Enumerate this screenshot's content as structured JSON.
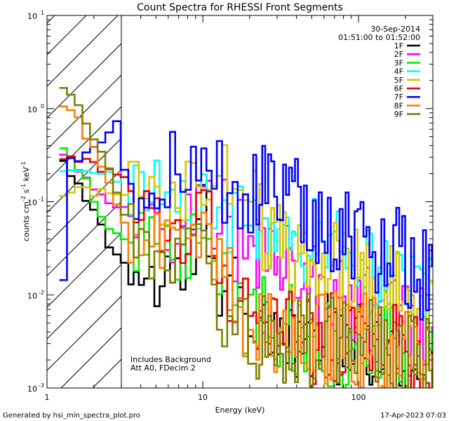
{
  "chart_data": {
    "type": "line",
    "title": "Count Spectra for RHESSI Front Segments",
    "xlabel": "Energy (keV)",
    "ylabel_parts": [
      "counts cm",
      "-2",
      " s",
      "-1",
      " keV",
      "-1"
    ],
    "xscale": "log",
    "yscale": "log",
    "xlim": [
      1,
      300
    ],
    "ylim": [
      0.001,
      10
    ],
    "x_ticks": [
      {
        "value": 1,
        "label": "1"
      },
      {
        "value": 10,
        "label": "10"
      },
      {
        "value": 100,
        "label": "100"
      }
    ],
    "y_ticks": [
      {
        "value": 0.001,
        "base": "10",
        "exp": "-3"
      },
      {
        "value": 0.01,
        "base": "10",
        "exp": "-2"
      },
      {
        "value": 0.1,
        "base": "10",
        "exp": "-1"
      },
      {
        "value": 1,
        "base": "10",
        "exp": "0"
      },
      {
        "value": 10,
        "base": "10",
        "exp": "1"
      }
    ],
    "date": "30-Sep-2014",
    "time_range": "01:51:00 to 01:52:00",
    "hatched_region_keV": [
      1,
      3
    ],
    "notes": [
      "Includes Background",
      "Att A0, FDecim 2"
    ],
    "legend_position": "top-right",
    "series": [
      {
        "name": "1F",
        "color": "#000000",
        "profile": [
          [
            1.2,
            0.25
          ],
          [
            1.35,
            0.2
          ],
          [
            1.6,
            0.12
          ],
          [
            2.0,
            0.065
          ],
          [
            2.5,
            0.03
          ],
          [
            3.0,
            0.022
          ],
          [
            5,
            0.012
          ],
          [
            8,
            0.016
          ],
          [
            10,
            0.09
          ],
          [
            12,
            0.02
          ],
          [
            20,
            0.0045
          ],
          [
            40,
            0.0035
          ],
          [
            80,
            0.003
          ],
          [
            150,
            0.0025
          ],
          [
            290,
            0.0018
          ]
        ]
      },
      {
        "name": "2F",
        "color": "#ff00ff",
        "profile": [
          [
            1.2,
            0.35
          ],
          [
            1.4,
            0.26
          ],
          [
            1.7,
            0.17
          ],
          [
            2.2,
            0.12
          ],
          [
            2.8,
            0.085
          ],
          [
            3.2,
            0.07
          ],
          [
            6,
            0.05
          ],
          [
            10,
            0.11
          ],
          [
            15,
            0.04
          ],
          [
            25,
            0.03
          ],
          [
            40,
            0.022
          ],
          [
            70,
            0.012
          ],
          [
            120,
            0.006
          ],
          [
            200,
            0.0045
          ],
          [
            290,
            0.004
          ]
        ]
      },
      {
        "name": "3F",
        "color": "#00ee00",
        "profile": [
          [
            1.2,
            0.38
          ],
          [
            1.4,
            0.3
          ],
          [
            1.7,
            0.16
          ],
          [
            2.2,
            0.06
          ],
          [
            2.8,
            0.045
          ],
          [
            3.2,
            0.04
          ],
          [
            6,
            0.022
          ],
          [
            10,
            0.04
          ],
          [
            15,
            0.006
          ],
          [
            30,
            0.0045
          ],
          [
            60,
            0.003
          ],
          [
            120,
            0.0025
          ],
          [
            290,
            0.002
          ]
        ]
      },
      {
        "name": "4F",
        "color": "#00ffff",
        "profile": [
          [
            1.2,
            0.2
          ],
          [
            1.4,
            0.2
          ],
          [
            1.7,
            0.2
          ],
          [
            2.2,
            0.2
          ],
          [
            2.8,
            0.18
          ],
          [
            3.2,
            0.17
          ],
          [
            6,
            0.13
          ],
          [
            10,
            0.12
          ],
          [
            15,
            0.08
          ],
          [
            30,
            0.055
          ],
          [
            60,
            0.035
          ],
          [
            120,
            0.018
          ],
          [
            200,
            0.012
          ],
          [
            290,
            0.01
          ]
        ]
      },
      {
        "name": "5F",
        "color": "#d4c800",
        "profile": [
          [
            1.2,
            0.13
          ],
          [
            1.5,
            0.13
          ],
          [
            2.0,
            0.13
          ],
          [
            2.6,
            0.125
          ],
          [
            3.2,
            0.12
          ],
          [
            6,
            0.11
          ],
          [
            9,
            0.14
          ],
          [
            12,
            0.16
          ],
          [
            18,
            0.17
          ],
          [
            25,
            0.04
          ],
          [
            40,
            0.02
          ],
          [
            70,
            0.02
          ],
          [
            110,
            0.014
          ],
          [
            200,
            0.01
          ],
          [
            290,
            0.008
          ]
        ]
      },
      {
        "name": "6F",
        "color": "#ee0000",
        "profile": [
          [
            1.2,
            0.3
          ],
          [
            1.4,
            0.27
          ],
          [
            1.8,
            0.25
          ],
          [
            2.3,
            0.2
          ],
          [
            3.0,
            0.18
          ],
          [
            3.3,
            0.12
          ],
          [
            5,
            0.05
          ],
          [
            8,
            0.05
          ],
          [
            10,
            0.12
          ],
          [
            13,
            0.012
          ],
          [
            20,
            0.005
          ],
          [
            40,
            0.004
          ],
          [
            80,
            0.003
          ],
          [
            150,
            0.0025
          ],
          [
            290,
            0.002
          ]
        ]
      },
      {
        "name": "7F",
        "color": "#0000ff",
        "profile": [
          [
            1.25,
            0.014
          ],
          [
            1.32,
            0.3
          ],
          [
            1.6,
            0.3
          ],
          [
            2.0,
            0.4
          ],
          [
            2.4,
            0.5
          ],
          [
            2.7,
            0.8
          ],
          [
            3.0,
            0.2
          ],
          [
            4.5,
            0.08
          ],
          [
            6,
            0.25
          ],
          [
            9,
            0.3
          ],
          [
            12,
            0.2
          ],
          [
            18,
            0.14
          ],
          [
            30,
            0.11
          ],
          [
            50,
            0.07
          ],
          [
            80,
            0.045
          ],
          [
            120,
            0.035
          ],
          [
            200,
            0.025
          ],
          [
            290,
            0.012
          ]
        ]
      },
      {
        "name": "8F",
        "color": "#ff7f00",
        "profile": [
          [
            1.2,
            0.95
          ],
          [
            1.45,
            0.8
          ],
          [
            1.8,
            0.45
          ],
          [
            2.3,
            0.2
          ],
          [
            2.8,
            0.08
          ],
          [
            3.3,
            0.05
          ],
          [
            6,
            0.03
          ],
          [
            9,
            0.03
          ],
          [
            10,
            0.1
          ],
          [
            12,
            0.02
          ],
          [
            20,
            0.005
          ],
          [
            40,
            0.004
          ],
          [
            80,
            0.0035
          ],
          [
            150,
            0.003
          ],
          [
            290,
            0.0025
          ]
        ]
      },
      {
        "name": "9F",
        "color": "#7f7f00",
        "profile": [
          [
            1.2,
            1.8
          ],
          [
            1.4,
            1.3
          ],
          [
            1.7,
            0.7
          ],
          [
            2.2,
            0.3
          ],
          [
            2.8,
            0.09
          ],
          [
            3.3,
            0.05
          ],
          [
            6,
            0.025
          ],
          [
            9,
            0.03
          ],
          [
            10,
            0.13
          ],
          [
            12,
            0.01
          ],
          [
            20,
            0.004
          ],
          [
            40,
            0.0035
          ],
          [
            80,
            0.003
          ],
          [
            150,
            0.0025
          ],
          [
            290,
            0.002
          ]
        ]
      }
    ]
  },
  "footer": {
    "left": "Generated by hsi_min_spectra_plot.pro",
    "right": "17-Apr-2023 07:03"
  }
}
